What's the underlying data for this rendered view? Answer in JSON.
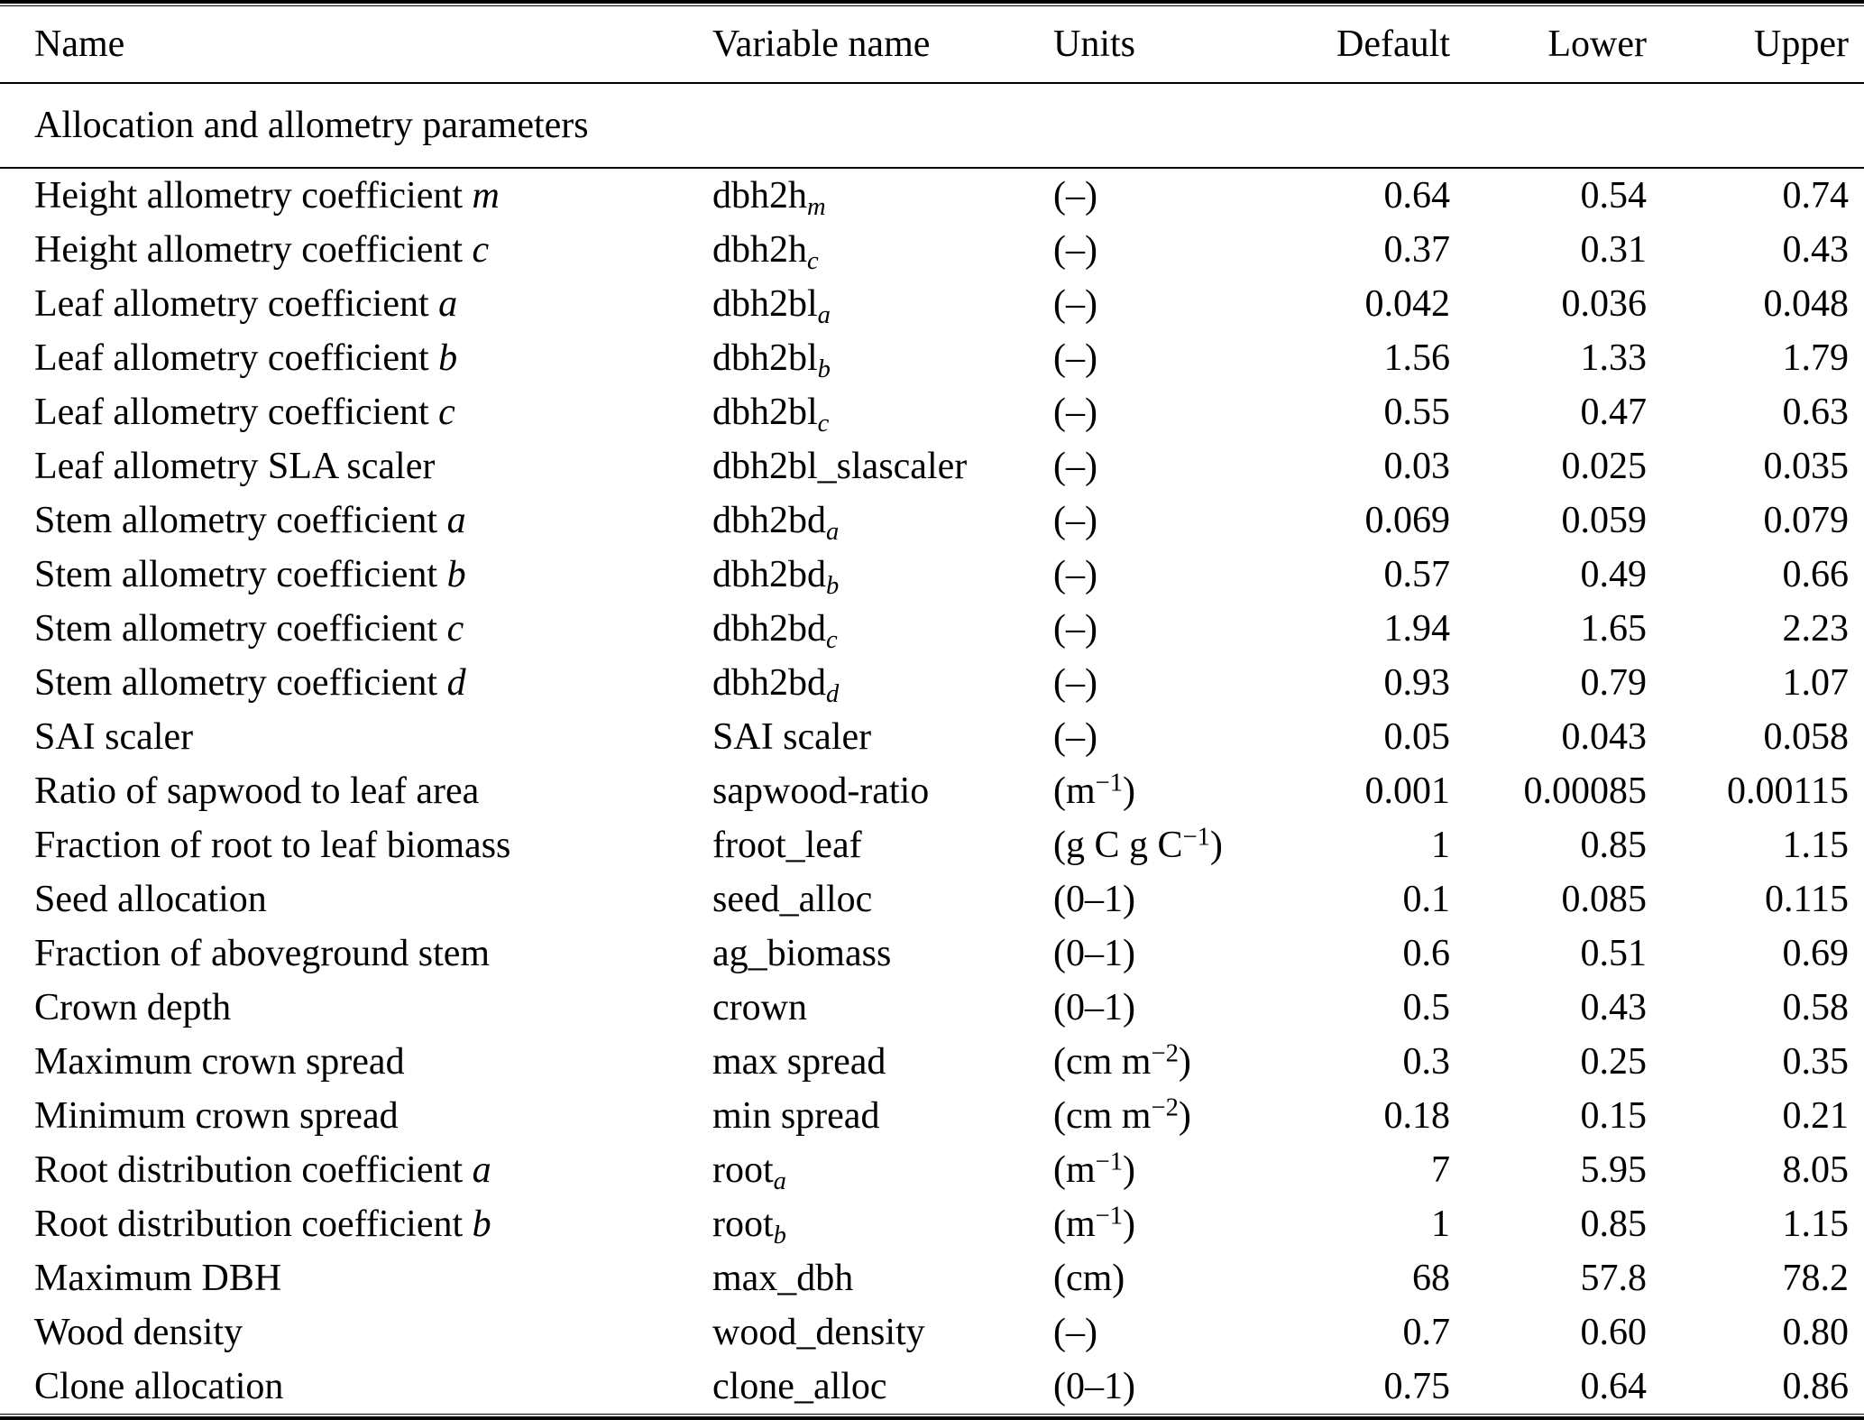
{
  "table": {
    "columns": [
      "Name",
      "Variable name",
      "Units",
      "Default",
      "Lower",
      "Upper"
    ],
    "section_header": "Allocation and allometry parameters",
    "colors": {
      "text": "#000000",
      "background": "#ffffff",
      "rule": "#000000"
    },
    "rows": [
      {
        "name": "Height allometry coefficient *m*",
        "variable": "dbh2h~m~",
        "units": "(–)",
        "default": "0.64",
        "lower": "0.54",
        "upper": "0.74"
      },
      {
        "name": "Height allometry coefficient *c*",
        "variable": "dbh2h~c~",
        "units": "(–)",
        "default": "0.37",
        "lower": "0.31",
        "upper": "0.43"
      },
      {
        "name": "Leaf allometry coefficient *a*",
        "variable": "dbh2bl~a~",
        "units": "(–)",
        "default": "0.042",
        "lower": "0.036",
        "upper": "0.048"
      },
      {
        "name": "Leaf allometry coefficient *b*",
        "variable": "dbh2bl~b~",
        "units": "(–)",
        "default": "1.56",
        "lower": "1.33",
        "upper": "1.79"
      },
      {
        "name": "Leaf allometry coefficient *c*",
        "variable": "dbh2bl~c~",
        "units": "(–)",
        "default": "0.55",
        "lower": "0.47",
        "upper": "0.63"
      },
      {
        "name": "Leaf allometry SLA scaler",
        "variable": "dbh2bl_slascaler",
        "units": "(–)",
        "default": "0.03",
        "lower": "0.025",
        "upper": "0.035"
      },
      {
        "name": "Stem allometry coefficient *a*",
        "variable": "dbh2bd~a~",
        "units": "(–)",
        "default": "0.069",
        "lower": "0.059",
        "upper": "0.079"
      },
      {
        "name": "Stem allometry coefficient *b*",
        "variable": "dbh2bd~b~",
        "units": "(–)",
        "default": "0.57",
        "lower": "0.49",
        "upper": "0.66"
      },
      {
        "name": "Stem allometry coefficient *c*",
        "variable": "dbh2bd~c~",
        "units": "(–)",
        "default": "1.94",
        "lower": "1.65",
        "upper": "2.23"
      },
      {
        "name": "Stem allometry coefficient *d*",
        "variable": "dbh2bd~d~",
        "units": "(–)",
        "default": "0.93",
        "lower": "0.79",
        "upper": "1.07"
      },
      {
        "name": "SAI scaler",
        "variable": "SAI scaler",
        "units": "(–)",
        "default": "0.05",
        "lower": "0.043",
        "upper": "0.058"
      },
      {
        "name": "Ratio of sapwood to leaf area",
        "variable": "sapwood-ratio",
        "units": "(m^−1^)",
        "default": "0.001",
        "lower": "0.00085",
        "upper": "0.00115"
      },
      {
        "name": "Fraction of root to leaf biomass",
        "variable": "froot_leaf",
        "units": "(g C g C^−1^)",
        "default": "1",
        "lower": "0.85",
        "upper": "1.15"
      },
      {
        "name": "Seed allocation",
        "variable": "seed_alloc",
        "units": "(0–1)",
        "default": "0.1",
        "lower": "0.085",
        "upper": "0.115"
      },
      {
        "name": "Fraction of aboveground stem",
        "variable": "ag_biomass",
        "units": "(0–1)",
        "default": "0.6",
        "lower": "0.51",
        "upper": "0.69"
      },
      {
        "name": "Crown depth",
        "variable": "crown",
        "units": "(0–1)",
        "default": "0.5",
        "lower": "0.43",
        "upper": "0.58"
      },
      {
        "name": "Maximum crown spread",
        "variable": "max spread",
        "units": "(cm m^−2^)",
        "default": "0.3",
        "lower": "0.25",
        "upper": "0.35"
      },
      {
        "name": "Minimum crown spread",
        "variable": "min spread",
        "units": "(cm m^−2^)",
        "default": "0.18",
        "lower": "0.15",
        "upper": "0.21"
      },
      {
        "name": "Root distribution coefficient *a*",
        "variable": "root~a~",
        "units": "(m^−1^)",
        "default": "7",
        "lower": "5.95",
        "upper": "8.05"
      },
      {
        "name": "Root distribution coefficient *b*",
        "variable": "root~b~",
        "units": "(m^−1^)",
        "default": "1",
        "lower": "0.85",
        "upper": "1.15"
      },
      {
        "name": "Maximum DBH",
        "variable": "max_dbh",
        "units": "(cm)",
        "default": "68",
        "lower": "57.8",
        "upper": "78.2"
      },
      {
        "name": "Wood density",
        "variable": "wood_density",
        "units": "(–)",
        "default": "0.7",
        "lower": "0.60",
        "upper": "0.80"
      },
      {
        "name": "Clone allocation",
        "variable": "clone_alloc",
        "units": "(0–1)",
        "default": "0.75",
        "lower": "0.64",
        "upper": "0.86"
      }
    ]
  }
}
